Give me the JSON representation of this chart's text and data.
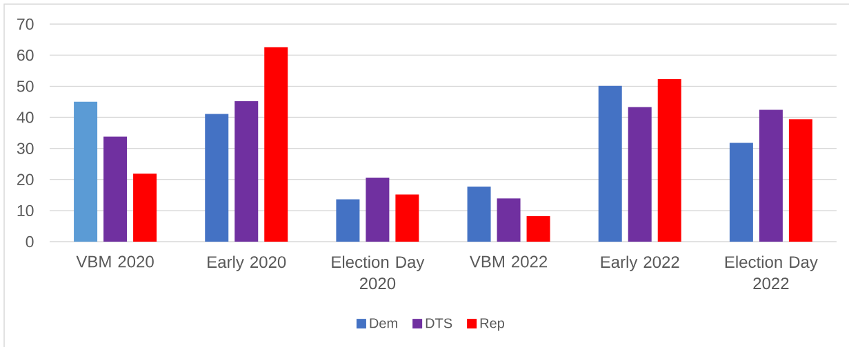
{
  "chart_data": {
    "type": "bar",
    "categories": [
      "VBM 2020",
      "Early 2020",
      "Election Day 2020",
      "VBM 2022",
      "Early 2022",
      "Election Day 2022"
    ],
    "series": [
      {
        "name": "Dem",
        "color": "#4472c4",
        "colors": [
          "#5b9bd5",
          "#4472c4",
          "#4472c4",
          "#4472c4",
          "#4472c4",
          "#4472c4"
        ],
        "values": [
          45,
          41.1,
          13.6,
          17.7,
          50.1,
          31.8
        ]
      },
      {
        "name": "DTS",
        "color": "#7030a0",
        "values": [
          33.8,
          45.2,
          20.6,
          13.9,
          43.3,
          42.4
        ]
      },
      {
        "name": "Rep",
        "color": "#ff0000",
        "values": [
          21.9,
          62.6,
          15.2,
          8.2,
          52.3,
          39.4
        ]
      }
    ],
    "ylim": [
      0,
      70
    ],
    "yticks": [
      0,
      10,
      20,
      30,
      40,
      50,
      60,
      70
    ],
    "grid": "y",
    "legend": "bottom"
  }
}
